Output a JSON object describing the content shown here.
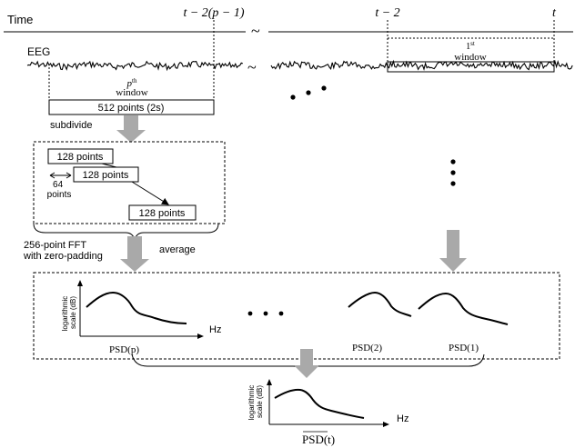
{
  "timeline": {
    "time_label": "Time",
    "eeg_label": "EEG",
    "ticks": [
      "t − 2(p − 1)",
      "t − 2",
      "t"
    ],
    "break_symbol": "~"
  },
  "windows": {
    "pth_window_sup": "th",
    "pth_window_base": "p",
    "pth_window_word": "window",
    "first_window_sup": "st",
    "first_window_base": "1",
    "first_window_word": "window"
  },
  "labels": {
    "points_512": "512 points (2s)",
    "subdivide": "subdivide",
    "seg1": "128 points",
    "seg2": "128 points",
    "seg3": "128 points",
    "overlap": "64 points",
    "overlap_line1": "64",
    "overlap_line2": "points",
    "fft_line1": "256-point FFT",
    "fft_line2": "with zero-padding",
    "average": "average"
  },
  "psd_panels": {
    "ylabel_line1": "logarithmic",
    "ylabel_line2": "scale (dB)",
    "xlabel": "Hz",
    "psd_p": "PSD(p)",
    "psd_2": "PSD(2)",
    "psd_1": "PSD(1)",
    "ellipsis": "• • •"
  },
  "result": {
    "ylabel_line1": "logarithmic",
    "ylabel_line2": "scale (dB)",
    "xlabel": "Hz",
    "label": "PSD(t)"
  },
  "colors": {
    "arrow_fill": "#a9a9a9",
    "stroke": "#000000"
  }
}
